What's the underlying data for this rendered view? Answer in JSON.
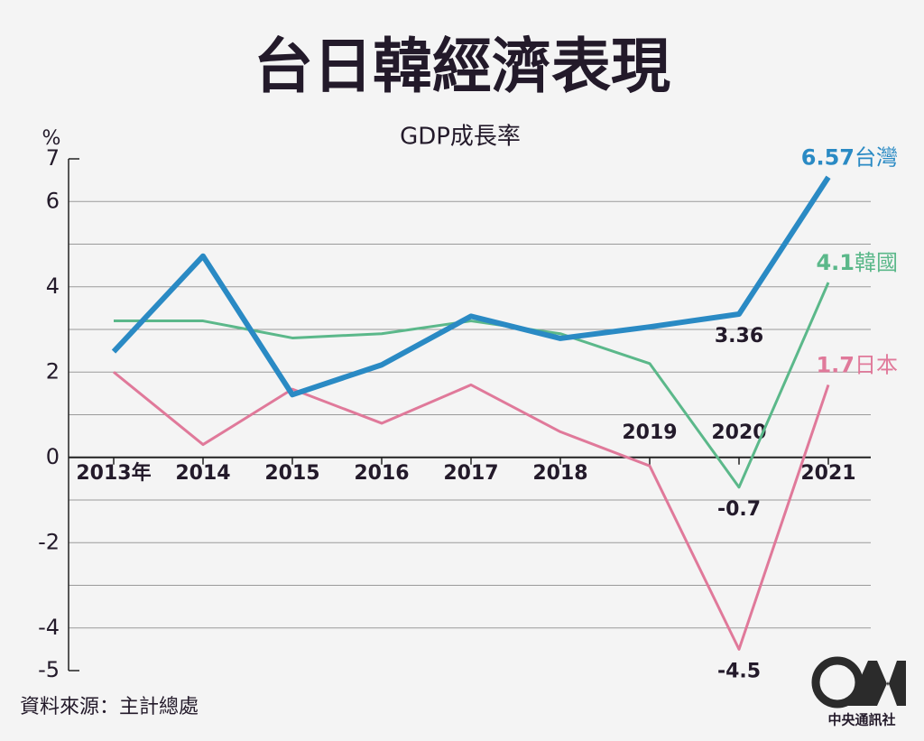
{
  "chart_data": {
    "type": "line",
    "title": "台日韓經濟表現",
    "subtitle": "GDP成長率",
    "y_label": "%",
    "categories": [
      "2013年",
      "2014",
      "2015",
      "2016",
      "2017",
      "2018",
      "2019",
      "2020",
      "2021"
    ],
    "series": [
      {
        "name": "台灣",
        "color": "#2a8ac4",
        "values": [
          2.48,
          4.72,
          1.47,
          2.17,
          3.31,
          2.79,
          3.06,
          3.36,
          6.57
        ],
        "value_labels": [
          null,
          null,
          null,
          null,
          null,
          null,
          null,
          "3.36",
          "6.57"
        ]
      },
      {
        "name": "韓國",
        "color": "#5bb88a",
        "values": [
          3.2,
          3.2,
          2.8,
          2.9,
          3.2,
          2.9,
          2.2,
          -0.7,
          4.1
        ],
        "value_labels": [
          null,
          null,
          null,
          null,
          null,
          null,
          null,
          "-0.7",
          "4.1"
        ]
      },
      {
        "name": "日本",
        "color": "#e0799a",
        "values": [
          2.0,
          0.3,
          1.6,
          0.8,
          1.7,
          0.6,
          -0.2,
          -4.5,
          1.7
        ],
        "value_labels": [
          null,
          null,
          null,
          null,
          null,
          null,
          null,
          "-4.5",
          "1.7"
        ]
      }
    ],
    "ylim": [
      -5,
      7
    ],
    "yticks": [
      7,
      6,
      4,
      2,
      0,
      -2,
      -4,
      -5
    ],
    "minor_yticks": [
      5,
      3,
      1,
      -1,
      -3
    ],
    "grid": true,
    "source": "資料來源：主計總處",
    "logo": "中央通訊社"
  }
}
